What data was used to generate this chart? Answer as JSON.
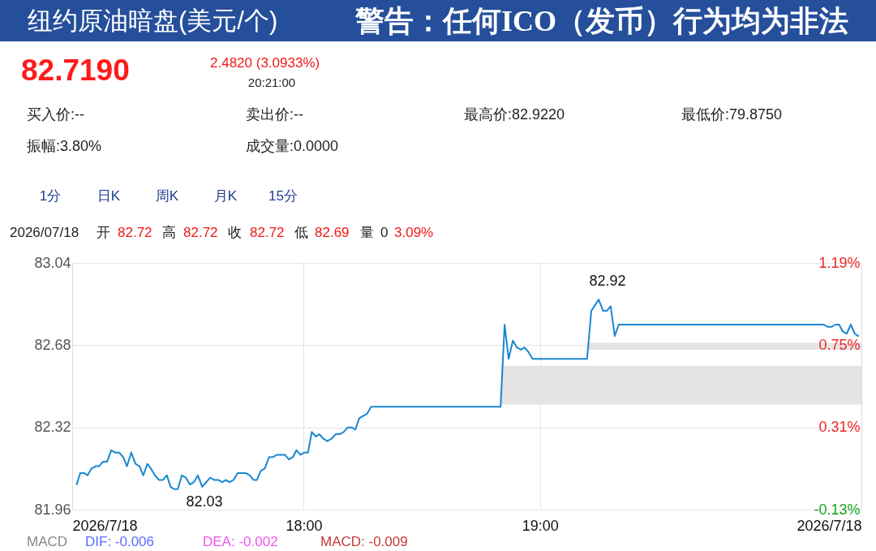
{
  "chart_data": {
    "type": "line",
    "title": "纽约原油暗盘(美元/个)",
    "annotations": [
      "警告：任何ICO（发币）行为均为非法",
      "82.7190",
      "2.4820 (3.0933%)",
      "20:21:00",
      "买入价:--",
      "卖出价:--",
      "最高价:82.9220",
      "最低价:79.8750",
      "振幅:3.80%",
      "成交量:0.0000",
      "1分",
      "日K",
      "周K",
      "月K",
      "15分",
      "2026/07/18",
      "开",
      "82.72",
      "高",
      "82.72",
      "收",
      "82.72",
      "低",
      "82.69",
      "量",
      "0",
      "3.09%",
      "MACD",
      "DIF: -0.006",
      "DEA: -0.002",
      "MACD: -0.009",
      "82.92",
      "82.03"
    ],
    "x": [
      17.039,
      17.054,
      17.07,
      17.085,
      17.102,
      17.119,
      17.134,
      17.15,
      17.168,
      17.185,
      17.202,
      17.219,
      17.236,
      17.252,
      17.27,
      17.288,
      17.305,
      17.321,
      17.338,
      17.353,
      17.37,
      17.387,
      17.404,
      17.421,
      17.436,
      17.45,
      17.467,
      17.484,
      17.501,
      17.518,
      17.535,
      17.552,
      17.57,
      17.587,
      17.604,
      17.621,
      17.638,
      17.655,
      17.67,
      17.686,
      17.703,
      17.72,
      17.737,
      17.754,
      17.772,
      17.787,
      17.802,
      17.818,
      17.835,
      17.853,
      17.869,
      17.886,
      17.903,
      17.92,
      17.937,
      17.954,
      17.969,
      17.986,
      18.003,
      18.018,
      18.034,
      18.051,
      18.066,
      18.083,
      18.1,
      18.117,
      18.135,
      18.152,
      18.169,
      18.186,
      18.203,
      18.218,
      18.235,
      18.251,
      18.268,
      18.285,
      18.833,
      18.85,
      18.867,
      18.885,
      18.902,
      18.919,
      18.934,
      18.951,
      18.968,
      19.199,
      19.217,
      19.248,
      19.267,
      19.282,
      19.299,
      19.316,
      19.333,
      19.348,
      20.201,
      20.218,
      20.233,
      20.25,
      20.266,
      20.281,
      20.298,
      20.315,
      20.332,
      20.347
    ],
    "series": [
      {
        "color": "#1a87d1",
        "values": [
          82.07,
          82.12,
          82.12,
          82.11,
          82.14,
          82.15,
          82.15,
          82.17,
          82.17,
          82.22,
          82.21,
          82.21,
          82.19,
          82.15,
          82.21,
          82.16,
          82.15,
          82.11,
          82.16,
          82.14,
          82.11,
          82.09,
          82.09,
          82.11,
          82.06,
          82.05,
          82.05,
          82.11,
          82.1,
          82.07,
          82.08,
          82.11,
          82.06,
          82.08,
          82.1,
          82.09,
          82.09,
          82.08,
          82.09,
          82.08,
          82.09,
          82.12,
          82.12,
          82.12,
          82.11,
          82.09,
          82.09,
          82.13,
          82.14,
          82.19,
          82.19,
          82.2,
          82.2,
          82.2,
          82.18,
          82.19,
          82.22,
          82.2,
          82.21,
          82.21,
          82.3,
          82.28,
          82.29,
          82.27,
          82.26,
          82.27,
          82.29,
          82.29,
          82.3,
          82.32,
          82.32,
          82.31,
          82.36,
          82.37,
          82.38,
          82.41,
          82.41,
          82.77,
          82.62,
          82.7,
          82.67,
          82.66,
          82.67,
          82.65,
          82.62,
          82.62,
          82.83,
          82.88,
          82.83,
          82.83,
          82.85,
          82.72,
          82.77,
          82.77,
          82.77,
          82.76,
          82.76,
          82.77,
          82.77,
          82.74,
          82.73,
          82.77,
          82.73,
          82.72
        ]
      },
      {
        "type": "area",
        "color": "#e4e4e4",
        "x": [
          18.836,
          20.36
        ],
        "values": [
          null,
          null
        ],
        "lower": [
          82.42,
          82.42
        ],
        "upper": [
          82.59,
          82.59
        ]
      },
      {
        "type": "area",
        "color": "#e4e4e4",
        "x": [
          19.205,
          20.36
        ],
        "values": [
          null,
          null
        ],
        "lower": [
          82.66,
          82.66
        ],
        "upper": [
          82.69,
          82.69
        ]
      }
    ],
    "xlim": [
      17.02,
      20.36
    ],
    "xticks": [
      {
        "value": 17.02,
        "label": "2026/7/18"
      },
      {
        "value": 18,
        "label": "18:00"
      },
      {
        "value": 19,
        "label": "19:00"
      },
      {
        "value": 20.36,
        "label": "2026/7/18"
      }
    ],
    "ylim": [
      81.96,
      83.04
    ],
    "yticks": [
      81.96,
      82.32,
      82.68,
      83.04
    ],
    "y2lim": [
      -0.13,
      1.19
    ],
    "y2ticks": [
      {
        "value": -0.13,
        "label": "-0.13%"
      },
      {
        "value": 0.31,
        "label": "0.31%"
      },
      {
        "value": 0.75,
        "label": "0.75%"
      },
      {
        "value": 1.19,
        "label": "1.19%"
      }
    ],
    "grid": true
  }
}
